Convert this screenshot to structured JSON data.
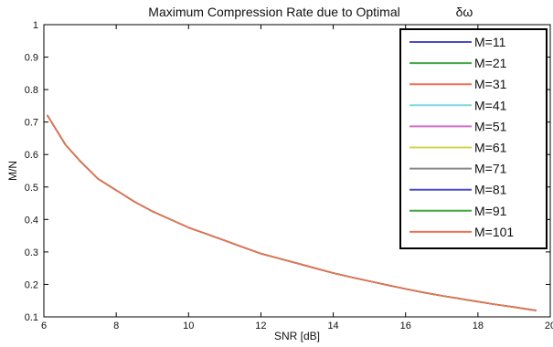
{
  "chart_data": {
    "type": "line",
    "title": "Maximum Compression Rate due to Optimal",
    "title_symbol": "δω",
    "xlabel": "SNR [dB]",
    "ylabel": "M/N",
    "xlim": [
      6,
      20
    ],
    "ylim": [
      0.1,
      1
    ],
    "xticks": [
      "6",
      "8",
      "10",
      "12",
      "14",
      "16",
      "18",
      "20"
    ],
    "yticks": [
      "0.1",
      "0.2",
      "0.3",
      "0.4",
      "0.5",
      "0.6",
      "0.7",
      "0.8",
      "0.9",
      "1"
    ],
    "legend_position": "top-right",
    "x": [
      6.1,
      6.6,
      7.0,
      7.5,
      8.0,
      8.5,
      9.0,
      9.5,
      10.0,
      10.5,
      11.0,
      11.5,
      12.0,
      12.5,
      13.0,
      13.5,
      14.0,
      14.5,
      15.0,
      15.5,
      16.0,
      16.5,
      17.0,
      17.5,
      18.0,
      18.5,
      19.0,
      19.6
    ],
    "series": [
      {
        "name": "M=11",
        "color": "#4b4bc8",
        "values": [
          0.72,
          0.63,
          0.58,
          0.525,
          0.49,
          0.455,
          0.425,
          0.4,
          0.375,
          0.355,
          0.335,
          0.315,
          0.295,
          0.28,
          0.265,
          0.25,
          0.235,
          0.222,
          0.21,
          0.198,
          0.186,
          0.175,
          0.165,
          0.156,
          0.147,
          0.138,
          0.13,
          0.12
        ]
      },
      {
        "name": "M=21",
        "color": "#3fa83f",
        "values": [
          0.72,
          0.63,
          0.58,
          0.525,
          0.49,
          0.455,
          0.425,
          0.4,
          0.375,
          0.355,
          0.335,
          0.315,
          0.295,
          0.28,
          0.265,
          0.25,
          0.235,
          0.222,
          0.21,
          0.198,
          0.186,
          0.175,
          0.165,
          0.156,
          0.147,
          0.138,
          0.13,
          0.12
        ]
      },
      {
        "name": "M=31",
        "color": "#f07050",
        "values": [
          0.72,
          0.63,
          0.58,
          0.525,
          0.49,
          0.455,
          0.425,
          0.4,
          0.375,
          0.355,
          0.335,
          0.315,
          0.295,
          0.28,
          0.265,
          0.25,
          0.235,
          0.222,
          0.21,
          0.198,
          0.186,
          0.175,
          0.165,
          0.156,
          0.147,
          0.138,
          0.13,
          0.12
        ]
      },
      {
        "name": "M=41",
        "color": "#7fd8e0",
        "values": [
          0.72,
          0.63,
          0.58,
          0.525,
          0.49,
          0.455,
          0.425,
          0.4,
          0.375,
          0.355,
          0.335,
          0.315,
          0.295,
          0.28,
          0.265,
          0.25,
          0.235,
          0.222,
          0.21,
          0.198,
          0.186,
          0.175,
          0.165,
          0.156,
          0.147,
          0.138,
          0.13,
          0.12
        ]
      },
      {
        "name": "M=51",
        "color": "#d070c8",
        "values": [
          0.72,
          0.63,
          0.58,
          0.525,
          0.49,
          0.455,
          0.425,
          0.4,
          0.375,
          0.355,
          0.335,
          0.315,
          0.295,
          0.28,
          0.265,
          0.25,
          0.235,
          0.222,
          0.21,
          0.198,
          0.186,
          0.175,
          0.165,
          0.156,
          0.147,
          0.138,
          0.13,
          0.12
        ]
      },
      {
        "name": "M=61",
        "color": "#d8d050",
        "values": [
          0.72,
          0.63,
          0.58,
          0.525,
          0.49,
          0.455,
          0.425,
          0.4,
          0.375,
          0.355,
          0.335,
          0.315,
          0.295,
          0.28,
          0.265,
          0.25,
          0.235,
          0.222,
          0.21,
          0.198,
          0.186,
          0.175,
          0.165,
          0.156,
          0.147,
          0.138,
          0.13,
          0.12
        ]
      },
      {
        "name": "M=71",
        "color": "#888888",
        "values": [
          0.72,
          0.63,
          0.58,
          0.525,
          0.49,
          0.455,
          0.425,
          0.4,
          0.375,
          0.355,
          0.335,
          0.315,
          0.295,
          0.28,
          0.265,
          0.25,
          0.235,
          0.222,
          0.21,
          0.198,
          0.186,
          0.175,
          0.165,
          0.156,
          0.147,
          0.138,
          0.13,
          0.12
        ]
      },
      {
        "name": "M=81",
        "color": "#4b4bc8",
        "values": [
          0.72,
          0.63,
          0.58,
          0.525,
          0.49,
          0.455,
          0.425,
          0.4,
          0.375,
          0.355,
          0.335,
          0.315,
          0.295,
          0.28,
          0.265,
          0.25,
          0.235,
          0.222,
          0.21,
          0.198,
          0.186,
          0.175,
          0.165,
          0.156,
          0.147,
          0.138,
          0.13,
          0.12
        ]
      },
      {
        "name": "M=91",
        "color": "#3fa83f",
        "values": [
          0.72,
          0.63,
          0.58,
          0.525,
          0.49,
          0.455,
          0.425,
          0.4,
          0.375,
          0.355,
          0.335,
          0.315,
          0.295,
          0.28,
          0.265,
          0.25,
          0.235,
          0.222,
          0.21,
          0.198,
          0.186,
          0.175,
          0.165,
          0.156,
          0.147,
          0.138,
          0.13,
          0.12
        ]
      },
      {
        "name": "M=101",
        "color": "#f07050",
        "values": [
          0.72,
          0.63,
          0.58,
          0.525,
          0.49,
          0.455,
          0.425,
          0.4,
          0.375,
          0.355,
          0.335,
          0.315,
          0.295,
          0.28,
          0.265,
          0.25,
          0.235,
          0.222,
          0.21,
          0.198,
          0.186,
          0.175,
          0.165,
          0.156,
          0.147,
          0.138,
          0.13,
          0.12
        ]
      }
    ]
  }
}
